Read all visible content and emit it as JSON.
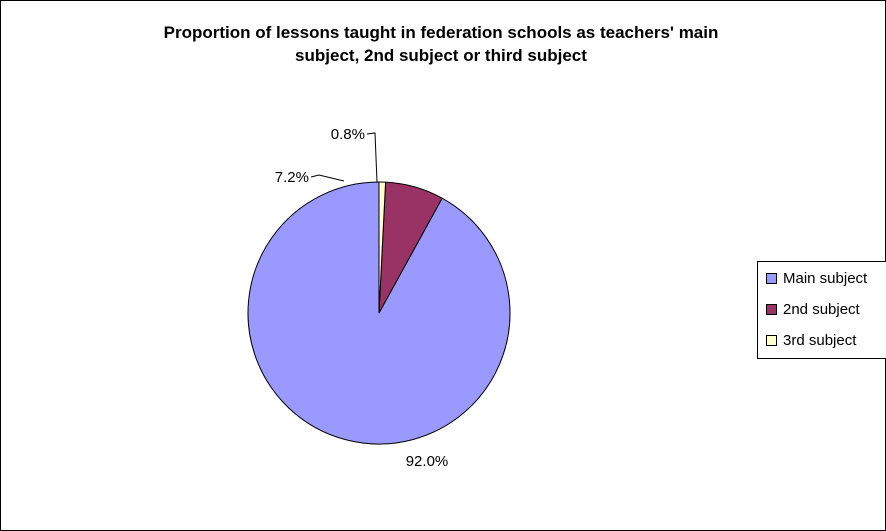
{
  "chart_data": {
    "type": "pie",
    "title": "Proportion of lessons taught in federation schools as teachers' main subject, 2nd subject or third subject",
    "title_lines": [
      "Proportion of lessons taught in federation schools as teachers' main",
      "subject, 2nd subject or third subject"
    ],
    "categories": [
      "Main subject",
      "2nd subject",
      "3rd subject"
    ],
    "values": [
      92.0,
      7.2,
      0.8
    ],
    "labels": [
      "92.0%",
      "7.2%",
      "0.8%"
    ],
    "colors": [
      "#9999ff",
      "#993366",
      "#ffffcc"
    ],
    "legend_position": "right"
  }
}
